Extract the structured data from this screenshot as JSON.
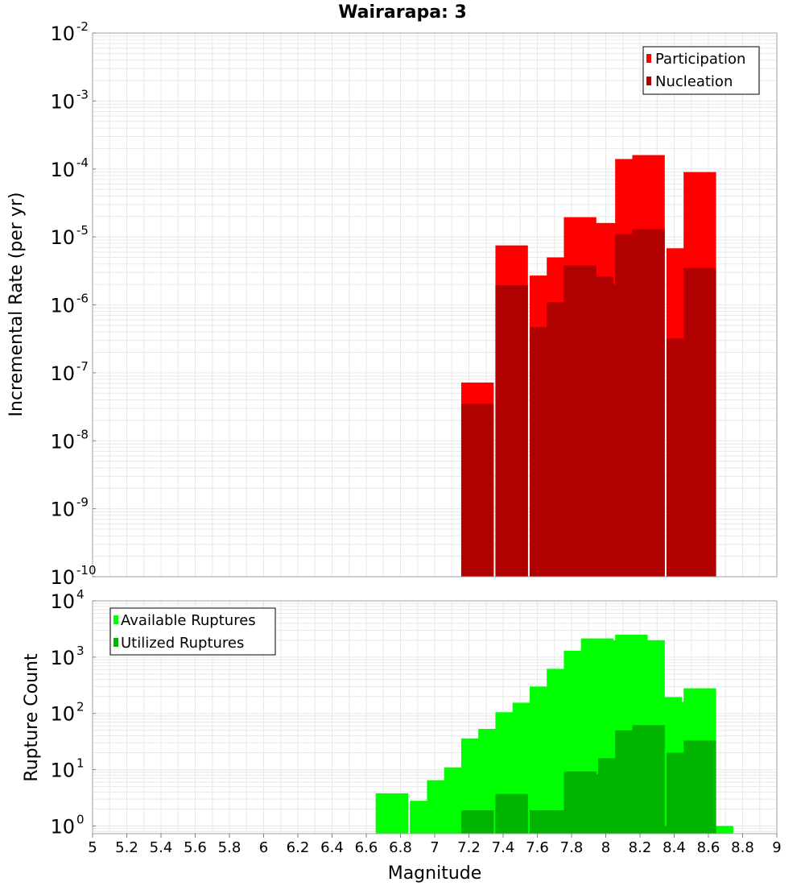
{
  "title": "Wairarapa: 3",
  "colors": {
    "participation": "#ff0000",
    "nucleation": "#b00000",
    "available": "#00ff00",
    "utilized": "#00b400",
    "grid": "#e8e8e8",
    "frame": "#a0a0a0"
  },
  "chart_data": [
    {
      "type": "bar",
      "ylabel": "Incremental Rate (per yr)",
      "xlabel": "",
      "yscale": "log",
      "ylim": [
        1e-10,
        0.01
      ],
      "xlim": [
        5,
        9
      ],
      "legend_position": "top-right",
      "grid": true,
      "yticks": [
        {
          "base": "10",
          "exp": "-2"
        },
        {
          "base": "10",
          "exp": "-3"
        },
        {
          "base": "10",
          "exp": "-4"
        },
        {
          "base": "10",
          "exp": "-5"
        },
        {
          "base": "10",
          "exp": "-6"
        },
        {
          "base": "10",
          "exp": "-7"
        },
        {
          "base": "10",
          "exp": "-8"
        },
        {
          "base": "10",
          "exp": "-9"
        },
        {
          "base": "10",
          "exp": "-10"
        }
      ],
      "x": [
        7.25,
        7.45,
        7.65,
        7.75,
        7.85,
        7.95,
        8.05,
        8.15,
        8.25,
        8.45,
        8.55
      ],
      "series": [
        {
          "name": "Participation",
          "values": [
            7.2e-08,
            7.5e-06,
            2.7e-06,
            5e-06,
            1.95e-05,
            1.6e-05,
            1.6e-05,
            0.00014,
            0.00016,
            6.8e-06,
            9e-05
          ]
        },
        {
          "name": "Nucleation",
          "values": [
            3.5e-08,
            1.95e-06,
            4.7e-07,
            1.1e-06,
            3.8e-06,
            2.6e-06,
            2e-06,
            1.1e-05,
            1.3e-05,
            3.2e-07,
            3.5e-06
          ]
        }
      ]
    },
    {
      "type": "bar",
      "ylabel": "Rupture Count",
      "xlabel": "Magnitude",
      "yscale": "log",
      "ylim": [
        0.73,
        10000
      ],
      "xlim": [
        5,
        9
      ],
      "legend_position": "top-left",
      "grid": true,
      "yticks": [
        {
          "base": "10",
          "exp": "4",
          "value": 10000
        },
        {
          "base": "10",
          "exp": "3",
          "value": 1000
        },
        {
          "base": "10",
          "exp": "2",
          "value": 100
        },
        {
          "base": "10",
          "exp": "1",
          "value": 10
        },
        {
          "base": "10",
          "exp": "0",
          "value": 1
        }
      ],
      "xticks": [
        "5",
        "5.2",
        "5.4",
        "5.6",
        "5.8",
        "6",
        "6.2",
        "6.4",
        "6.6",
        "6.8",
        "7",
        "7.2",
        "7.4",
        "7.6",
        "7.8",
        "8",
        "8.2",
        "8.4",
        "8.6",
        "8.8",
        "9"
      ],
      "x": [
        6.75,
        6.95,
        7.05,
        7.15,
        7.25,
        7.35,
        7.45,
        7.55,
        7.65,
        7.75,
        7.85,
        7.95,
        8.05,
        8.15,
        8.25,
        8.35,
        8.45,
        8.55,
        8.65
      ],
      "series": [
        {
          "name": "Available Ruptures",
          "values": [
            3.8,
            2.8,
            6.5,
            11,
            36,
            53,
            105,
            155,
            300,
            620,
            1300,
            2150,
            2000,
            2500,
            2000,
            195,
            160,
            280,
            1
          ]
        },
        {
          "name": "Utilized Ruptures",
          "values": [
            0,
            0,
            0,
            0,
            1.9,
            0,
            3.7,
            0,
            1.9,
            1.9,
            9.3,
            8.3,
            16,
            50,
            62,
            1,
            20,
            33,
            0
          ]
        }
      ]
    }
  ]
}
